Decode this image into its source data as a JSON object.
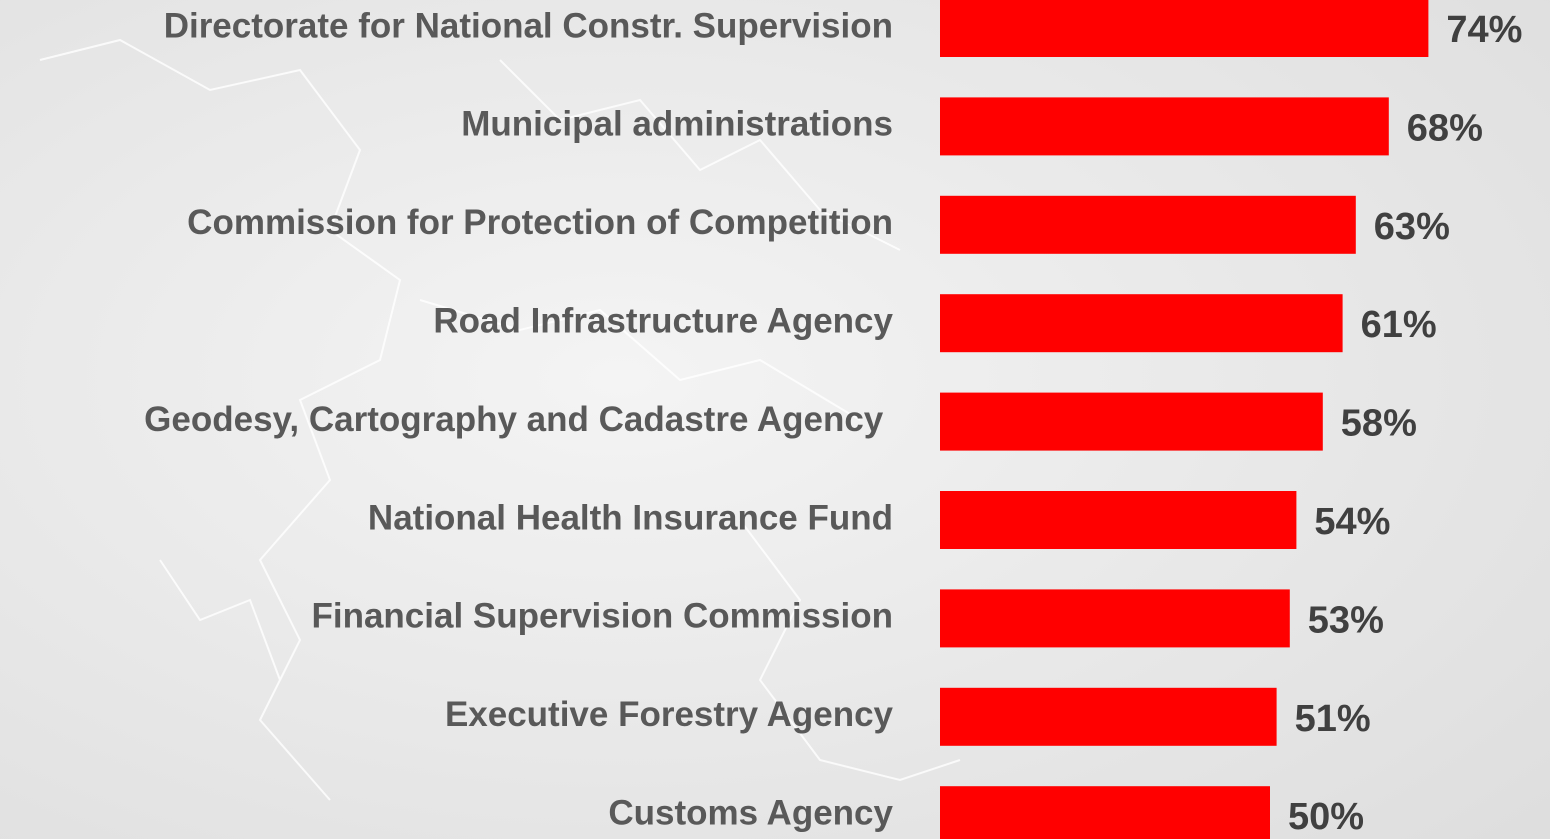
{
  "chart_data": {
    "type": "bar",
    "orientation": "horizontal",
    "categories": [
      "Directorate for National Constr. Supervision",
      "Municipal administrations",
      "Commission for Protection of Competition",
      "Road Infrastructure Agency",
      "Geodesy, Cartography and Cadastre Agency ",
      "National Health Insurance Fund",
      "Financial Supervision Commission",
      "Executive Forestry Agency",
      "Customs Agency"
    ],
    "values": [
      74,
      68,
      63,
      61,
      58,
      54,
      53,
      51,
      50
    ],
    "value_labels": [
      "74%",
      "68%",
      "63%",
      "61%",
      "58%",
      "54%",
      "53%",
      "51%",
      "50%"
    ],
    "color": "#ff0000"
  }
}
